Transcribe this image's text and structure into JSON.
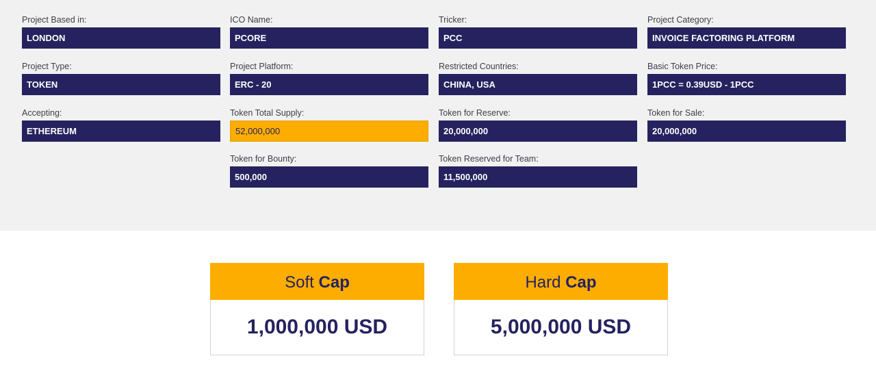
{
  "fields": {
    "project_based_in": {
      "label": "Project Based in:",
      "value": "LONDON"
    },
    "ico_name": {
      "label": "ICO Name:",
      "value": "PCORE"
    },
    "tricker": {
      "label": "Tricker:",
      "value": "PCC"
    },
    "project_category": {
      "label": "Project Category:",
      "value": "INVOICE FACTORING PLATFORM"
    },
    "project_type": {
      "label": "Project Type:",
      "value": "TOKEN"
    },
    "project_platform": {
      "label": "Project Platform:",
      "value": "ERC - 20"
    },
    "restricted_countries": {
      "label": "Restricted Countries:",
      "value": "CHINA, USA"
    },
    "basic_token_price": {
      "label": "Basic Token Price:",
      "value": "1PCC = 0.39USD - 1PCC"
    },
    "accepting": {
      "label": "Accepting:",
      "value": "ETHEREUM"
    },
    "token_total_supply": {
      "label": "Token Total Supply:",
      "value": "52,000,000"
    },
    "token_for_reserve": {
      "label": "Token for Reserve:",
      "value": "20,000,000"
    },
    "token_for_sale": {
      "label": "Token for Sale:",
      "value": "20,000,000"
    },
    "token_for_bounty": {
      "label": "Token for Bounty:",
      "value": "500,000"
    },
    "token_reserved_for_team": {
      "label": "Token Reserved for Team:",
      "value": "11,500,000"
    }
  },
  "caps": {
    "soft": {
      "title_light": "Soft",
      "title_bold": "Cap",
      "value": "1,000,000 USD"
    },
    "hard": {
      "title_light": "Hard",
      "title_bold": "Cap",
      "value": "5,000,000 USD"
    }
  },
  "colors": {
    "navy": "#25225f",
    "accent": "#fdad00",
    "panel_bg": "#f1f1f1"
  }
}
